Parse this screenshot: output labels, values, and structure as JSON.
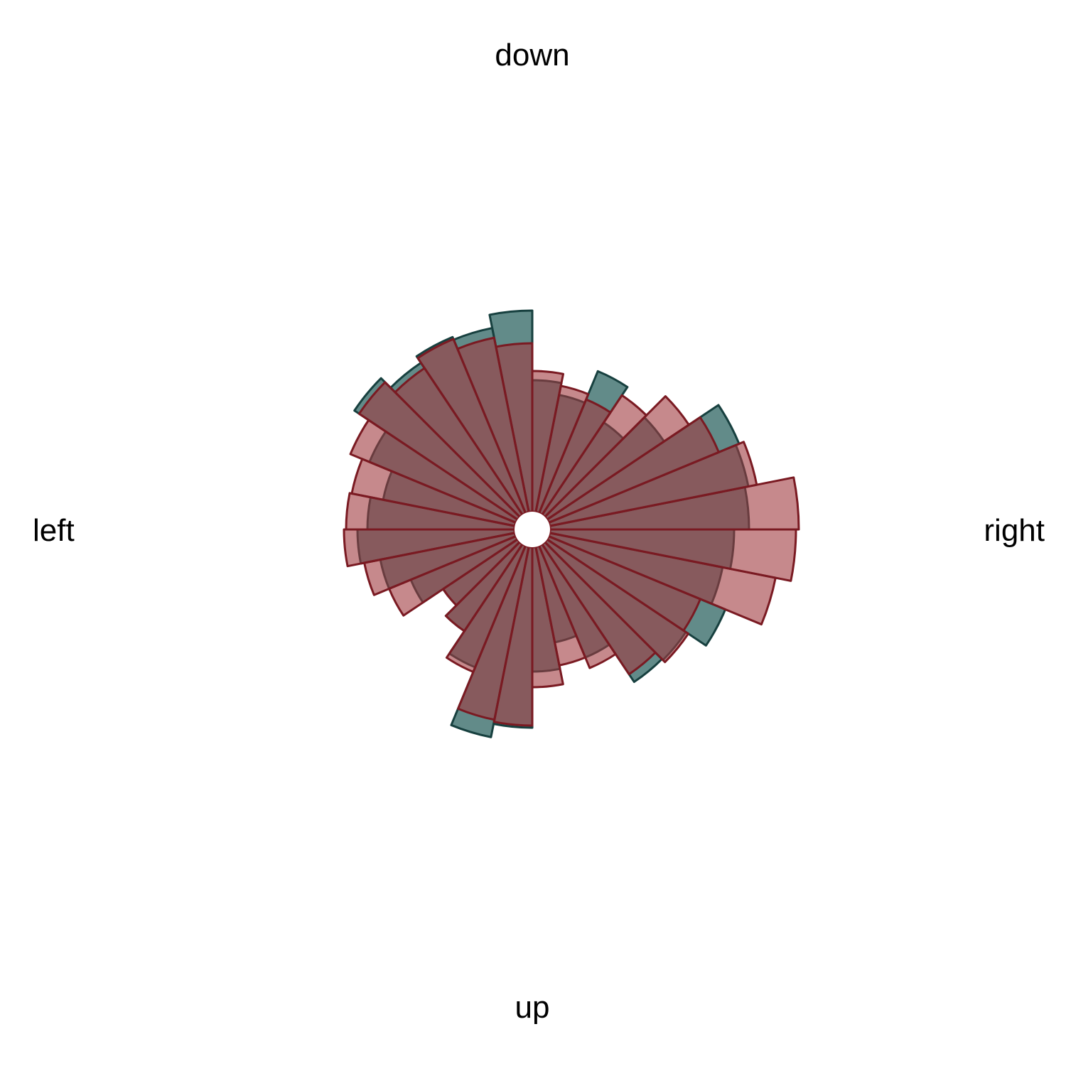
{
  "chart_data": {
    "type": "polar-histogram",
    "direction_labels": {
      "top": "down",
      "right": "right",
      "bottom": "up",
      "left": "left"
    },
    "bins": 32,
    "bin_width_deg": 11.25,
    "angle_origin": "up",
    "series": [
      {
        "color": "#1f5a57",
        "values": [
          200,
          162,
          195,
          258,
          260,
          294,
          273,
          284,
          305,
          310,
          315,
          223,
          181,
          241,
          193,
          210,
          308,
          289,
          293,
          282,
          301,
          248,
          214,
          232,
          246,
          218,
          185,
          151,
          172,
          210,
          298,
          279
        ]
      },
      {
        "color": "#a03a40",
        "values": [
          222,
          195,
          211,
          245,
          264,
          256,
          349,
          371,
          375,
          322,
          284,
          265,
          227,
          198,
          206,
          223,
          262,
          275,
          290,
          273,
          293,
          277,
          259,
          262,
          265,
          241,
          218,
          151,
          172,
          217,
          273,
          276
        ]
      }
    ]
  }
}
